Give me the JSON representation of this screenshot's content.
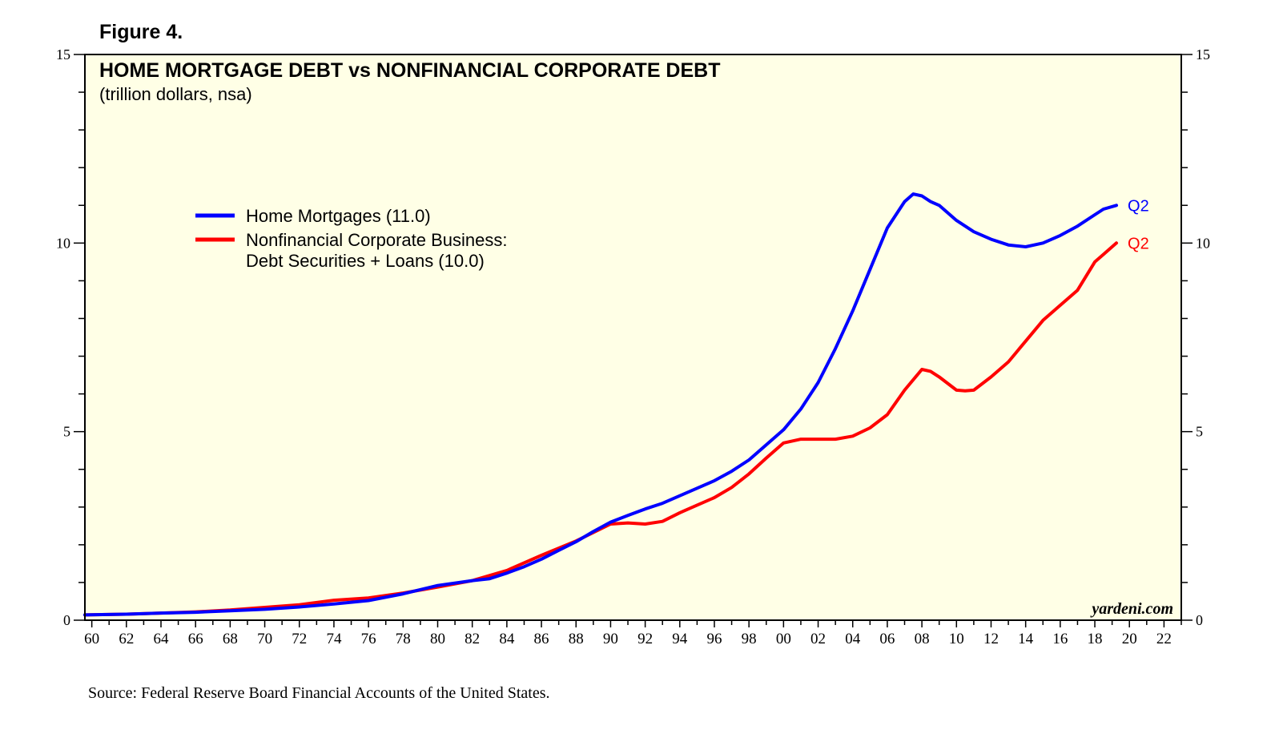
{
  "figure_label": "Figure 4.",
  "source": "Source: Federal Reserve Board Financial Accounts of the United States.",
  "watermark": "yardeni.com",
  "colors": {
    "background": "#ffffe6",
    "home": "#0000ff",
    "corp": "#ff0000",
    "axis": "#000000"
  },
  "chart_data": {
    "type": "line",
    "title": "HOME MORTGAGE DEBT vs NONFINANCIAL CORPORATE DEBT",
    "subtitle": "(trillion dollars, nsa)",
    "xlabel": "",
    "ylabel": "",
    "xlim": [
      1959.6,
      2023.0
    ],
    "ylim": [
      0,
      15
    ],
    "y_ticks": [
      0,
      5,
      10,
      15
    ],
    "y_minor_step": 1,
    "x_ticks": [
      1960,
      1962,
      1964,
      1966,
      1968,
      1970,
      1972,
      1974,
      1976,
      1978,
      1980,
      1982,
      1984,
      1986,
      1988,
      1990,
      1992,
      1994,
      1996,
      1998,
      2000,
      2002,
      2004,
      2006,
      2008,
      2010,
      2012,
      2014,
      2016,
      2018,
      2020,
      2022
    ],
    "x_tick_labels": [
      "60",
      "62",
      "64",
      "66",
      "68",
      "70",
      "72",
      "74",
      "76",
      "78",
      "80",
      "82",
      "84",
      "86",
      "88",
      "90",
      "92",
      "94",
      "96",
      "98",
      "00",
      "02",
      "04",
      "06",
      "08",
      "10",
      "12",
      "14",
      "16",
      "18",
      "20",
      "22"
    ],
    "legend_position": "top-left",
    "series": [
      {
        "name": "Home Mortgages (11.0)",
        "color": "#0000ff",
        "end_label": "Q2",
        "x": [
          1959.6,
          1962,
          1964,
          1966,
          1968,
          1970,
          1972,
          1974,
          1976,
          1978,
          1980,
          1982,
          1983,
          1984,
          1985,
          1986,
          1987,
          1988,
          1989,
          1990,
          1991,
          1992,
          1993,
          1994,
          1995,
          1996,
          1997,
          1998,
          1999,
          2000,
          2001,
          2002,
          2003,
          2004,
          2005,
          2006,
          2007,
          2007.5,
          2008,
          2008.5,
          2009,
          2010,
          2011,
          2012,
          2013,
          2014,
          2015,
          2016,
          2017,
          2018,
          2018.5,
          2019.25
        ],
        "values": [
          0.14,
          0.16,
          0.19,
          0.21,
          0.25,
          0.29,
          0.35,
          0.43,
          0.52,
          0.7,
          0.92,
          1.05,
          1.1,
          1.25,
          1.42,
          1.62,
          1.85,
          2.08,
          2.35,
          2.6,
          2.78,
          2.95,
          3.1,
          3.3,
          3.5,
          3.7,
          3.95,
          4.25,
          4.65,
          5.05,
          5.6,
          6.3,
          7.2,
          8.2,
          9.3,
          10.4,
          11.1,
          11.3,
          11.25,
          11.1,
          11.0,
          10.6,
          10.3,
          10.1,
          9.95,
          9.9,
          10.0,
          10.2,
          10.45,
          10.75,
          10.9,
          11.0
        ]
      },
      {
        "name": "Nonfinancial Corporate Business:",
        "name_line2": "Debt Securities + Loans (10.0)",
        "color": "#ff0000",
        "end_label": "Q2",
        "x": [
          1959.6,
          1962,
          1964,
          1966,
          1968,
          1970,
          1972,
          1974,
          1976,
          1978,
          1980,
          1982,
          1984,
          1986,
          1988,
          1990,
          1991,
          1992,
          1993,
          1994,
          1995,
          1996,
          1997,
          1998,
          1999,
          2000,
          2001,
          2002,
          2003,
          2004,
          2005,
          2006,
          2007,
          2008,
          2008.5,
          2009,
          2010,
          2010.5,
          2011,
          2012,
          2013,
          2014,
          2015,
          2016,
          2017,
          2018,
          2018.5,
          2019.25
        ],
        "values": [
          0.14,
          0.16,
          0.19,
          0.22,
          0.27,
          0.34,
          0.41,
          0.53,
          0.59,
          0.72,
          0.88,
          1.05,
          1.32,
          1.72,
          2.1,
          2.55,
          2.58,
          2.55,
          2.62,
          2.85,
          3.05,
          3.25,
          3.52,
          3.88,
          4.3,
          4.7,
          4.8,
          4.8,
          4.8,
          4.88,
          5.1,
          5.45,
          6.1,
          6.65,
          6.6,
          6.45,
          6.1,
          6.08,
          6.1,
          6.45,
          6.85,
          7.4,
          7.95,
          8.35,
          8.75,
          9.5,
          9.7,
          10.0
        ]
      }
    ]
  }
}
